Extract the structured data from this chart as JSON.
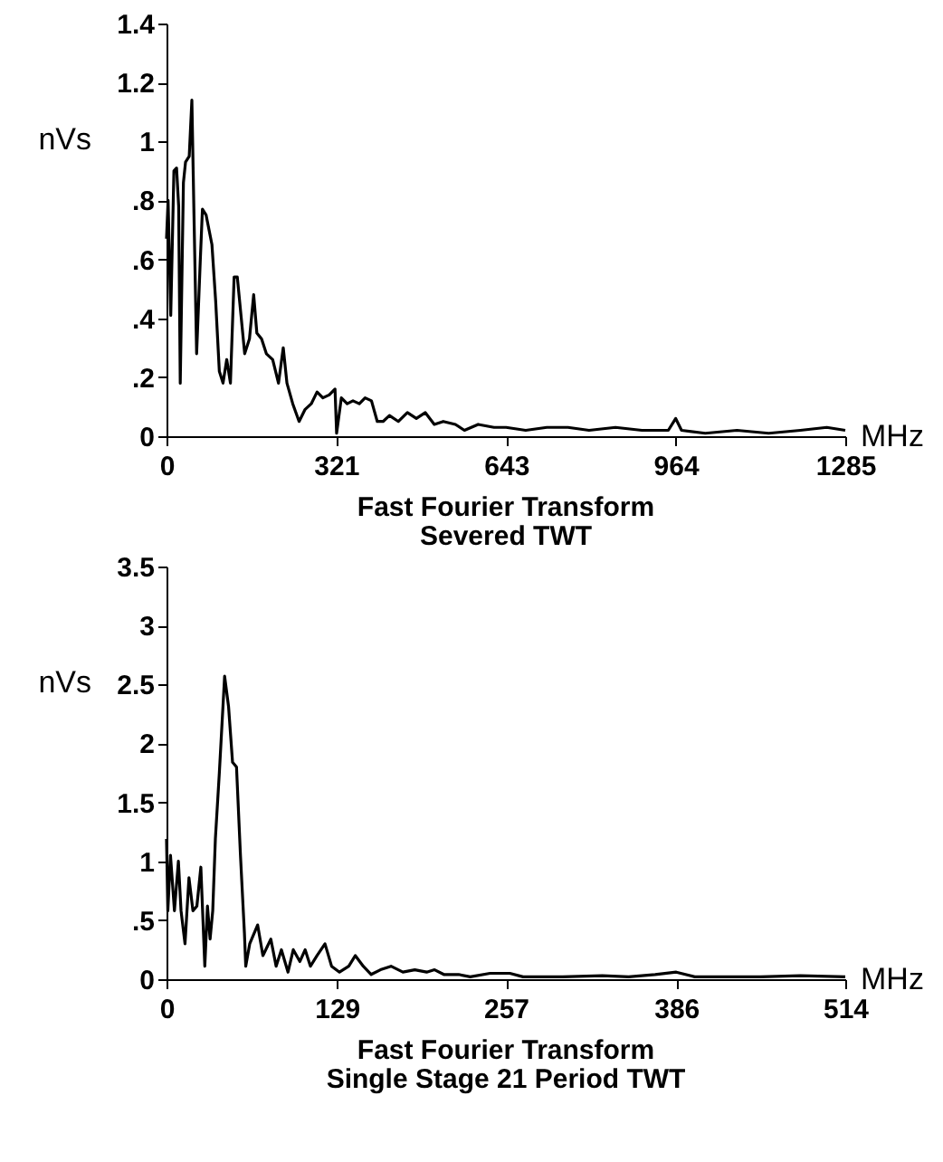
{
  "chart_data": [
    {
      "type": "line",
      "title": "Fast Fourier Transform",
      "subtitle": "Severed TWT",
      "xlabel": "MHz",
      "ylabel": "nVs",
      "xlim": [
        0,
        1285
      ],
      "xticks": [
        0,
        321,
        643,
        964,
        1285
      ],
      "ylim": [
        0,
        1.4
      ],
      "yticks": [
        0,
        {
          "value": 0.2,
          "label": ".2"
        },
        {
          "value": 0.4,
          "label": ".4"
        },
        {
          "value": 0.6,
          "label": ".6"
        },
        {
          "value": 0.8,
          "label": ".8"
        },
        1,
        1.2,
        1.4
      ],
      "series": [
        {
          "color": "#000000",
          "x": [
            0,
            3,
            8,
            14,
            19,
            23,
            26,
            32,
            36,
            43,
            48,
            52,
            57,
            64,
            68,
            75,
            86,
            93,
            100,
            107,
            114,
            121,
            128,
            134,
            141,
            148,
            157,
            165,
            171,
            180,
            189,
            201,
            212,
            221,
            228,
            239,
            251,
            262,
            274,
            285,
            296,
            308,
            319,
            322,
            331,
            342,
            353,
            365,
            376,
            388,
            399,
            410,
            422,
            439,
            456,
            473,
            490,
            507,
            524,
            547,
            564,
            590,
            620,
            643,
            680,
            720,
            760,
            800,
            850,
            900,
            950,
            964,
            975,
            1020,
            1080,
            1140,
            1200,
            1250,
            1285
          ],
          "values": [
            0.67,
            0.8,
            0.41,
            0.9,
            0.91,
            0.78,
            0.18,
            0.86,
            0.93,
            0.95,
            1.14,
            0.75,
            0.28,
            0.6,
            0.77,
            0.75,
            0.65,
            0.46,
            0.22,
            0.18,
            0.26,
            0.18,
            0.54,
            0.54,
            0.41,
            0.28,
            0.33,
            0.48,
            0.35,
            0.33,
            0.28,
            0.26,
            0.18,
            0.3,
            0.18,
            0.11,
            0.05,
            0.09,
            0.11,
            0.15,
            0.13,
            0.14,
            0.16,
            0.01,
            0.13,
            0.11,
            0.12,
            0.11,
            0.13,
            0.12,
            0.05,
            0.05,
            0.07,
            0.05,
            0.08,
            0.06,
            0.08,
            0.04,
            0.05,
            0.04,
            0.02,
            0.04,
            0.03,
            0.03,
            0.02,
            0.03,
            0.03,
            0.02,
            0.03,
            0.02,
            0.02,
            0.06,
            0.02,
            0.01,
            0.02,
            0.01,
            0.02,
            0.03,
            0.02
          ]
        }
      ]
    },
    {
      "type": "line",
      "title": "Fast Fourier Transform",
      "subtitle": "Single Stage 21 Period TWT",
      "xlabel": "MHz",
      "ylabel": "nVs",
      "xlim": [
        0,
        514
      ],
      "xticks": [
        0,
        129,
        257,
        386,
        514
      ],
      "ylim": [
        0,
        3.5
      ],
      "yticks": [
        0,
        {
          "value": 0.5,
          "label": ".5"
        },
        1,
        1.5,
        2,
        2.5,
        3,
        3.5
      ],
      "series": [
        {
          "color": "#000000",
          "x": [
            0,
            1,
            3,
            6,
            9,
            11,
            14,
            17,
            20,
            23,
            26,
            29,
            31,
            33,
            35,
            37,
            40,
            44,
            47,
            50,
            53,
            56,
            59,
            60,
            63,
            69,
            73,
            79,
            83,
            87,
            92,
            96,
            101,
            105,
            109,
            114,
            120,
            125,
            131,
            138,
            143,
            149,
            155,
            162,
            170,
            179,
            188,
            197,
            203,
            210,
            221,
            230,
            245,
            260,
            270,
            300,
            330,
            350,
            370,
            386,
            400,
            450,
            480,
            514
          ],
          "values": [
            1.19,
            0.58,
            1.05,
            0.58,
            1.0,
            0.58,
            0.3,
            0.86,
            0.58,
            0.62,
            0.95,
            0.11,
            0.62,
            0.34,
            0.58,
            1.19,
            1.75,
            2.57,
            2.31,
            1.84,
            1.8,
            1.05,
            0.39,
            0.11,
            0.3,
            0.46,
            0.2,
            0.34,
            0.11,
            0.25,
            0.06,
            0.25,
            0.15,
            0.25,
            0.11,
            0.2,
            0.3,
            0.11,
            0.06,
            0.11,
            0.2,
            0.11,
            0.04,
            0.08,
            0.11,
            0.06,
            0.08,
            0.06,
            0.08,
            0.04,
            0.04,
            0.02,
            0.05,
            0.05,
            0.02,
            0.02,
            0.03,
            0.02,
            0.04,
            0.06,
            0.02,
            0.02,
            0.03,
            0.02
          ]
        }
      ]
    }
  ]
}
